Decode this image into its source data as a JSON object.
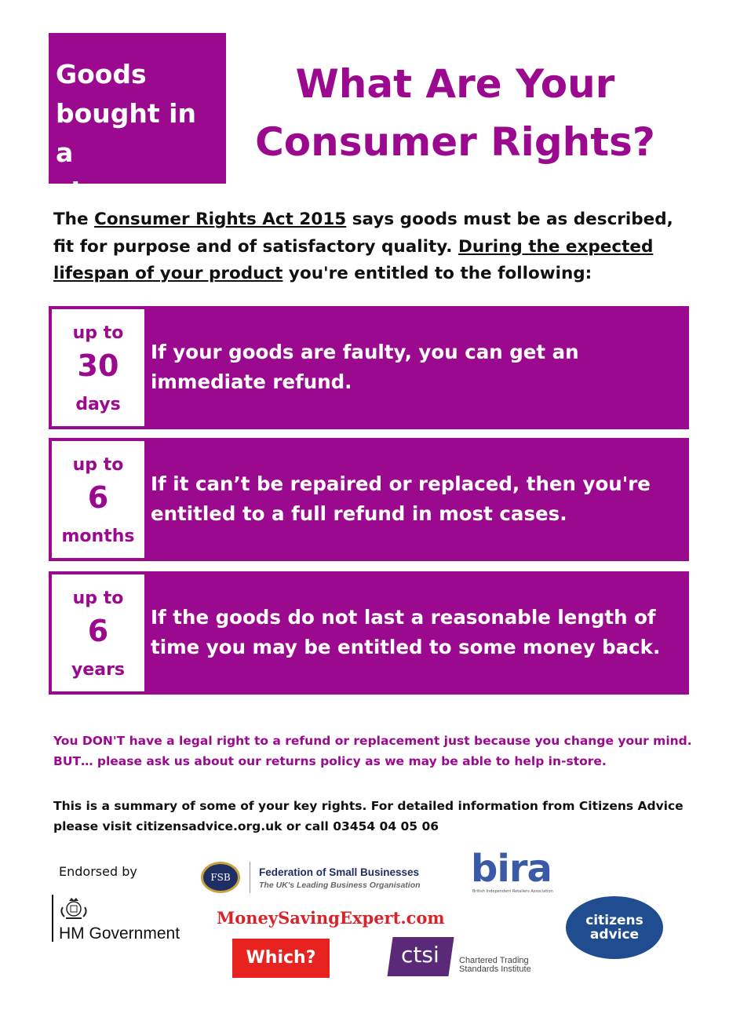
{
  "header": {
    "tag_lines": [
      "Goods",
      "bought in a",
      "shop"
    ],
    "title_lines": [
      "What Are Your",
      "Consumer Rights?"
    ]
  },
  "intro": {
    "t1": "The ",
    "t2": "Consumer Rights Act 2015",
    "t3": " says goods must be as described, fit for purpose and of satisfactory quality. ",
    "t4": "During the expected lifespan of your product",
    "t5": " you're entitled to the following:"
  },
  "rights": [
    {
      "prefix": "up to",
      "number": "30",
      "unit": "days",
      "text": "If your goods are faulty, you can get an immediate refund."
    },
    {
      "prefix": "up to",
      "number": "6",
      "unit": "months",
      "text": "If it can’t be repaired or replaced, then you're entitled to a full refund in most cases."
    },
    {
      "prefix": "up to",
      "number": "6",
      "unit": "years",
      "text": "If the goods do not last a reasonable length of time you may be entitled to some money back."
    }
  ],
  "note_lines": [
    "You DON'T have a legal right to a refund or replacement just because you change your mind.",
    "BUT… please ask us about our returns policy as we may be able to help in-store."
  ],
  "summary_lines": [
    "This is a summary of some of your key rights. For detailed information from Citizens Advice",
    "please visit citizensadvice.org.uk or call 03454 04 05 06"
  ],
  "endorsed_label": "Endorsed by",
  "logos": {
    "hm_government": "HM Government",
    "fsb_seal": "FSB",
    "fsb_name": "Federation of Small Businesses",
    "fsb_sub": "The UK's Leading Business Organisation",
    "bira": "bira",
    "bira_sub": "British Independent Retailers Association",
    "mse": "MoneySavingExpert.com",
    "which": "Which?",
    "ctsi": "ctsi",
    "ctsi_line1": "Chartered Trading",
    "ctsi_line2": "Standards Institute",
    "ca_line1": "citizens",
    "ca_line2": "advice"
  },
  "colors": {
    "accent": "#9b0a8e"
  }
}
